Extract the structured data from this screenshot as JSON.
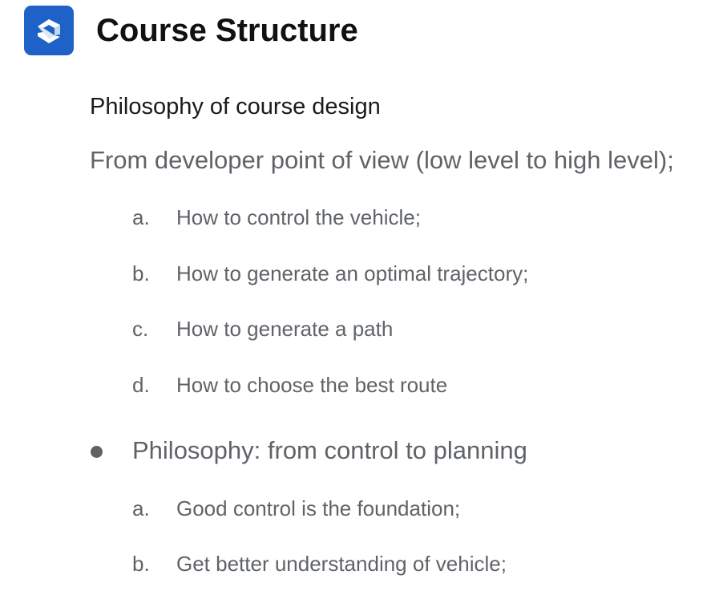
{
  "header": {
    "title": "Course Structure",
    "logo_icon": "stacked-s-logo-icon",
    "logo_color": "#1e62c8"
  },
  "content": {
    "subtitle": "Philosophy of course design",
    "viewpoint": "From developer point of view (low level to high level);",
    "developer_items": [
      {
        "marker": "a.",
        "text": "How to control the vehicle;"
      },
      {
        "marker": "b.",
        "text": "How to generate an optimal trajectory;"
      },
      {
        "marker": "c.",
        "text": "How to generate a path"
      },
      {
        "marker": "d.",
        "text": "How to choose the best route"
      }
    ],
    "philosophy_bullet": "Philosophy: from control to planning",
    "philosophy_items": [
      {
        "marker": "a.",
        "text": "Good control is the foundation;"
      },
      {
        "marker": "b.",
        "text": "Get better understanding of vehicle;"
      }
    ]
  }
}
